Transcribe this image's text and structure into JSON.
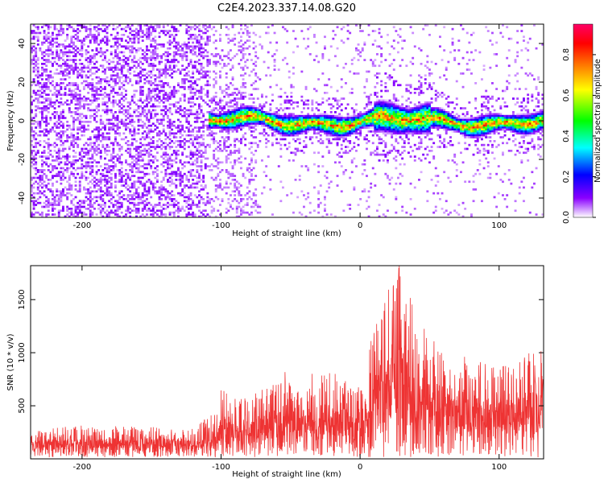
{
  "title": "C2E4.2023.337.14.08.G20",
  "chart_data": [
    {
      "type": "heatmap",
      "xlabel": "Height of straight line (km)",
      "ylabel": "Frequency (Hz)",
      "xlim": [
        -237,
        132
      ],
      "ylim": [
        -50,
        50
      ],
      "xticks": [
        -200,
        -100,
        0,
        100
      ],
      "xtick_labels": [
        "-200",
        "-100",
        "0",
        "100"
      ],
      "yticks": [
        -40,
        -20,
        0,
        20,
        40
      ],
      "ytick_labels": [
        "-40",
        "-20",
        "0",
        "20",
        "40"
      ],
      "colorbar": {
        "label": "Normalized spectral amplitude",
        "range": [
          0.0,
          0.95
        ],
        "ticks": [
          0.0,
          0.2,
          0.4,
          0.6,
          0.8
        ],
        "tick_labels": [
          "0.0",
          "0.2",
          "0.4",
          "0.6",
          "0.8"
        ],
        "colormap": [
          "#ffffff",
          "#8a00ff",
          "#0000ff",
          "#00ffff",
          "#00ff00",
          "#ffff00",
          "#ff8000",
          "#ff0000",
          "#ff0066"
        ]
      },
      "signal_band": {
        "x_start": -110,
        "center_frequency": 0,
        "peak_amplitude": 0.95
      },
      "grid": false
    },
    {
      "type": "line",
      "xlabel": "Height of straight line (km)",
      "ylabel": "SNR (10 * v/v)",
      "xlim": [
        -237,
        132
      ],
      "ylim": [
        0,
        1820
      ],
      "xticks": [
        -200,
        -100,
        0,
        100
      ],
      "xtick_labels": [
        "-200",
        "-100",
        "0",
        "100"
      ],
      "yticks": [
        500,
        1000,
        1500
      ],
      "ytick_labels": [
        "500",
        "1000",
        "1500"
      ],
      "color": "#ee3333",
      "envelope": [
        {
          "x": -237,
          "y": 260
        },
        {
          "x": -200,
          "y": 300
        },
        {
          "x": -160,
          "y": 290
        },
        {
          "x": -120,
          "y": 280
        },
        {
          "x": -105,
          "y": 420
        },
        {
          "x": -100,
          "y": 650
        },
        {
          "x": -85,
          "y": 550
        },
        {
          "x": -60,
          "y": 700
        },
        {
          "x": -55,
          "y": 950
        },
        {
          "x": -45,
          "y": 650
        },
        {
          "x": -30,
          "y": 850
        },
        {
          "x": -15,
          "y": 780
        },
        {
          "x": -2,
          "y": 650
        },
        {
          "x": 5,
          "y": 1000
        },
        {
          "x": 15,
          "y": 1500
        },
        {
          "x": 28,
          "y": 1820
        },
        {
          "x": 40,
          "y": 1350
        },
        {
          "x": 50,
          "y": 1150
        },
        {
          "x": 65,
          "y": 950
        },
        {
          "x": 80,
          "y": 1000
        },
        {
          "x": 95,
          "y": 850
        },
        {
          "x": 110,
          "y": 900
        },
        {
          "x": 132,
          "y": 1100
        }
      ],
      "grid": false
    }
  ]
}
